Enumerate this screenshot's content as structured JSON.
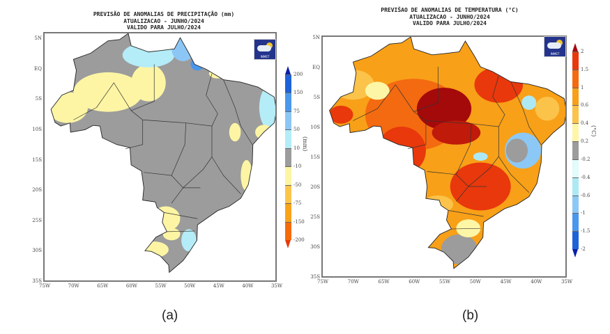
{
  "panel_a": {
    "title_lines": [
      "PREVISÃO DE ANOMALIAS DE PRECIPITAÇÃO (mm)",
      "ATUALIZACAO - JUNHO/2024",
      "VALIDO PARA JULHO/2024"
    ],
    "logo_text": "INMET",
    "colorbar": {
      "unit": "(mm)",
      "labels": [
        "200",
        "150",
        "75",
        "50",
        "10",
        "-10",
        "-50",
        "-75",
        "-150",
        "-200"
      ],
      "colors": [
        "#1e62d8",
        "#4a97ec",
        "#8cc6f5",
        "#b4ecf7",
        "#9c9c9c",
        "#fdf5a4",
        "#fbc54c",
        "#f9a31a",
        "#f66a0e"
      ],
      "arrow_top": "#0a1fa8",
      "arrow_bottom": "#e53a0b"
    },
    "caption": "(a)"
  },
  "panel_b": {
    "title_lines": [
      "PREVIŠAO DE ANOMALIAS DE TEMPERATURA (°C)",
      "ATUALIZACAO - JUNHO/2024",
      "VALIDO PARA JULHO/2024"
    ],
    "logo_text": "INMET",
    "colorbar": {
      "unit": "(°C)",
      "labels": [
        "2",
        "1.5",
        "1",
        "0.6",
        "0.4",
        "0.2",
        "-0.2",
        "-0.4",
        "-0.6",
        "-1",
        "-1.5",
        "-2"
      ],
      "colors": [
        "#e8380c",
        "#f46a10",
        "#f8a018",
        "#fbc34a",
        "#fdf6a6",
        "#9c9c9c",
        "#e2fbfd",
        "#ade9f4",
        "#8cc8f5",
        "#4a98ec",
        "#1e62d8"
      ],
      "arrow_top": "#a40a0a",
      "arrow_bottom": "#0a1fa8"
    },
    "caption": "(b)"
  },
  "axes": {
    "lat_labels": [
      "5N",
      "EQ",
      "5S",
      "10S",
      "15S",
      "20S",
      "25S",
      "30S",
      "35S"
    ],
    "lon_labels": [
      "75W",
      "70W",
      "65W",
      "60W",
      "55W",
      "50W",
      "45W",
      "40W",
      "35W"
    ]
  }
}
